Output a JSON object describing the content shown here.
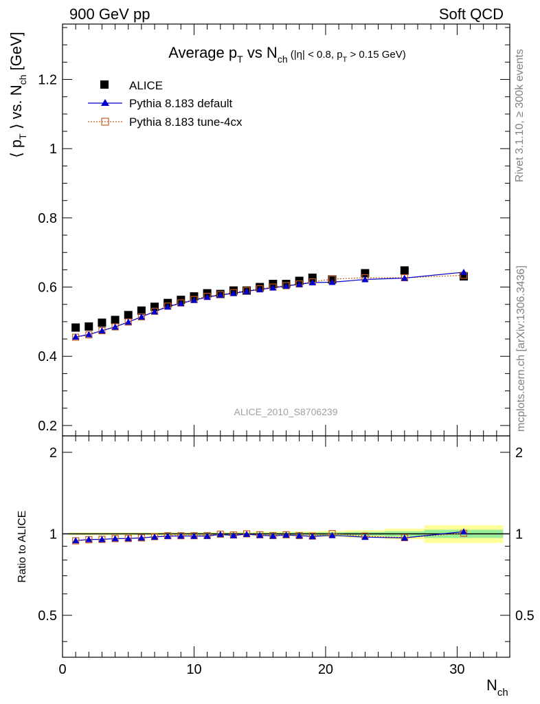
{
  "header": {
    "left": "900 GeV pp",
    "right": "Soft QCD"
  },
  "side_labels": {
    "rivet": "Rivet 3.1.10, ≥ 300k events",
    "mcplots": "mcplots.cern.ch [arXiv:1306.3436]"
  },
  "title_parts": {
    "main": "Average p",
    "sub1": "T",
    "mid": " vs N",
    "sub2": "ch",
    "cut_a": " (|η| < 0.8, p",
    "cut_sub": "T",
    "cut_b": " > 0.15 GeV)"
  },
  "ylabel_parts": {
    "a": "⟨ p",
    "sub1": "T",
    "b": " ⟩ vs. N",
    "sub2": "ch",
    "c": " [GeV]"
  },
  "ratio_ylabel": "Ratio to ALICE",
  "xlabel_parts": {
    "a": "N",
    "sub": "ch"
  },
  "watermark": "ALICE_2010_S8706239",
  "legend": {
    "alice": "ALICE",
    "default": "Pythia 8.183 default",
    "tune": "Pythia 8.183 tune-4cx"
  },
  "colors": {
    "alice": "#000000",
    "default": "#0000cc",
    "tune": "#c85a1e",
    "band_inner": "#99ee99",
    "band_outer": "#ffff99"
  },
  "chart_data": {
    "type": "scatter",
    "title": "Average pT vs Nch (|η| < 0.8, pT > 0.15 GeV)",
    "xlabel": "Nch",
    "ylabel": "⟨ pT ⟩ vs. Nch [GeV]",
    "xlim": [
      0,
      34
    ],
    "ylim": [
      0.17,
      1.36
    ],
    "ratio_ylim_log": [
      0.35,
      2.3
    ],
    "x_ticks": [
      0,
      10,
      20,
      30
    ],
    "y_ticks": [
      0.2,
      0.4,
      0.6,
      0.8,
      1,
      1.2
    ],
    "ratio_ticks": [
      0.5,
      1,
      2
    ],
    "x": [
      1,
      2,
      3,
      4,
      5,
      6,
      7,
      8,
      9,
      10,
      11,
      12,
      13,
      14,
      15,
      16,
      17,
      18,
      19,
      20.5,
      23,
      26,
      30.5
    ],
    "series": [
      {
        "name": "ALICE",
        "values": [
          0.483,
          0.486,
          0.497,
          0.505,
          0.519,
          0.532,
          0.543,
          0.554,
          0.563,
          0.573,
          0.582,
          0.58,
          0.59,
          0.59,
          0.6,
          0.609,
          0.609,
          0.618,
          0.627,
          0.622,
          0.64,
          0.648,
          0.631
        ]
      },
      {
        "name": "Pythia 8.183 default",
        "values": [
          0.456,
          0.463,
          0.474,
          0.485,
          0.499,
          0.514,
          0.529,
          0.543,
          0.553,
          0.562,
          0.571,
          0.577,
          0.582,
          0.588,
          0.593,
          0.598,
          0.603,
          0.608,
          0.613,
          0.614,
          0.622,
          0.626,
          0.643
        ]
      },
      {
        "name": "Pythia 8.183 tune-4cx",
        "values": [
          0.455,
          0.462,
          0.474,
          0.485,
          0.499,
          0.514,
          0.53,
          0.545,
          0.554,
          0.564,
          0.573,
          0.578,
          0.584,
          0.59,
          0.595,
          0.6,
          0.604,
          0.609,
          0.615,
          0.623,
          0.627,
          0.627,
          0.634
        ]
      }
    ],
    "ratio_series": [
      {
        "name": "Pythia 8.183 default",
        "values": [
          0.944,
          0.953,
          0.954,
          0.96,
          0.961,
          0.966,
          0.974,
          0.98,
          0.982,
          0.981,
          0.981,
          0.995,
          0.986,
          0.997,
          0.988,
          0.982,
          0.99,
          0.984,
          0.978,
          0.987,
          0.972,
          0.966,
          1.019
        ]
      },
      {
        "name": "Pythia 8.183 tune-4cx",
        "values": [
          0.942,
          0.951,
          0.954,
          0.96,
          0.961,
          0.966,
          0.976,
          0.984,
          0.984,
          0.984,
          0.985,
          0.997,
          0.99,
          1.0,
          0.992,
          0.985,
          0.992,
          0.985,
          0.981,
          1.002,
          0.98,
          0.968,
          1.005
        ]
      }
    ],
    "ratio_bands": [
      {
        "x0": 0.5,
        "x1": 1.5,
        "inner": 0.006,
        "outer": 0.012
      },
      {
        "x0": 1.5,
        "x1": 2.5,
        "inner": 0.006,
        "outer": 0.012
      },
      {
        "x0": 2.5,
        "x1": 3.5,
        "inner": 0.006,
        "outer": 0.012
      },
      {
        "x0": 3.5,
        "x1": 4.5,
        "inner": 0.006,
        "outer": 0.012
      },
      {
        "x0": 4.5,
        "x1": 5.5,
        "inner": 0.006,
        "outer": 0.012
      },
      {
        "x0": 5.5,
        "x1": 6.5,
        "inner": 0.006,
        "outer": 0.012
      },
      {
        "x0": 6.5,
        "x1": 7.5,
        "inner": 0.006,
        "outer": 0.012
      },
      {
        "x0": 7.5,
        "x1": 8.5,
        "inner": 0.006,
        "outer": 0.013
      },
      {
        "x0": 8.5,
        "x1": 9.5,
        "inner": 0.006,
        "outer": 0.013
      },
      {
        "x0": 9.5,
        "x1": 10.5,
        "inner": 0.007,
        "outer": 0.013
      },
      {
        "x0": 10.5,
        "x1": 11.5,
        "inner": 0.007,
        "outer": 0.014
      },
      {
        "x0": 11.5,
        "x1": 12.5,
        "inner": 0.007,
        "outer": 0.014
      },
      {
        "x0": 12.5,
        "x1": 13.5,
        "inner": 0.008,
        "outer": 0.015
      },
      {
        "x0": 13.5,
        "x1": 14.5,
        "inner": 0.008,
        "outer": 0.016
      },
      {
        "x0": 14.5,
        "x1": 15.5,
        "inner": 0.009,
        "outer": 0.017
      },
      {
        "x0": 15.5,
        "x1": 16.5,
        "inner": 0.009,
        "outer": 0.018
      },
      {
        "x0": 16.5,
        "x1": 17.5,
        "inner": 0.01,
        "outer": 0.019
      },
      {
        "x0": 17.5,
        "x1": 18.5,
        "inner": 0.011,
        "outer": 0.02
      },
      {
        "x0": 18.5,
        "x1": 19.5,
        "inner": 0.012,
        "outer": 0.022
      },
      {
        "x0": 19.5,
        "x1": 21.5,
        "inner": 0.013,
        "outer": 0.025
      },
      {
        "x0": 21.5,
        "x1": 24.5,
        "inner": 0.016,
        "outer": 0.032
      },
      {
        "x0": 24.5,
        "x1": 27.5,
        "inner": 0.022,
        "outer": 0.045
      },
      {
        "x0": 27.5,
        "x1": 33.5,
        "inner": 0.035,
        "outer": 0.075
      }
    ]
  }
}
